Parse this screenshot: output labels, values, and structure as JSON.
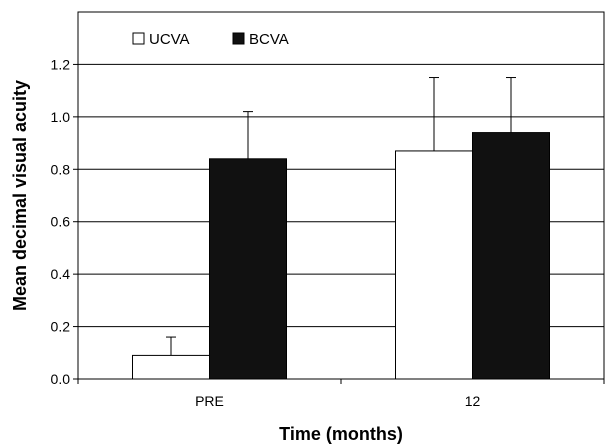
{
  "chart_data": {
    "type": "bar",
    "categories": [
      "PRE",
      "12"
    ],
    "series": [
      {
        "name": "UCVA",
        "values": [
          0.09,
          0.87
        ],
        "errors": [
          0.07,
          0.28
        ],
        "color": "#ffffff"
      },
      {
        "name": "BCVA",
        "values": [
          0.84,
          0.94
        ],
        "errors": [
          0.18,
          0.21
        ],
        "color": "#111111"
      }
    ],
    "xlabel": "Time (months)",
    "ylabel": "Mean decimal visual acuity",
    "ylim": [
      0,
      1.4
    ],
    "yticks": [
      "0.0",
      "0.2",
      "0.4",
      "0.6",
      "0.8",
      "1.0",
      "1.2"
    ],
    "grid": true,
    "legend_position": "top-left"
  }
}
